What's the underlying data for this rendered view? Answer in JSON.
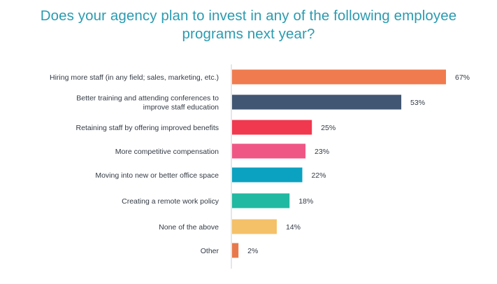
{
  "chart_data": {
    "type": "bar",
    "orientation": "horizontal",
    "title_line1": "Does your agency plan to invest in any of the following employee",
    "title_line2": "programs next year?",
    "categories": [
      [
        "Hiring more staff (in any field; sales, marketing, etc.)"
      ],
      [
        "Better training and attending conferences to",
        "improve staff education"
      ],
      [
        "Retaining staff by offering improved benefits"
      ],
      [
        "More competitive compensation"
      ],
      [
        "Moving into new or better office space"
      ],
      [
        "Creating a remote work policy"
      ],
      [
        "None of the above"
      ],
      [
        "Other"
      ]
    ],
    "values": [
      67,
      53,
      25,
      23,
      22,
      18,
      14,
      2
    ],
    "value_labels": [
      "67%",
      "53%",
      "25%",
      "23%",
      "22%",
      "18%",
      "14%",
      "2%"
    ],
    "colors": [
      "#f07b4e",
      "#415672",
      "#f0384f",
      "#f05685",
      "#0aa2c0",
      "#21b9a1",
      "#f4c068",
      "#e8784b"
    ],
    "xlim": [
      0,
      100
    ],
    "xlabel": "",
    "ylabel": "",
    "grid": false,
    "legend": "none"
  }
}
